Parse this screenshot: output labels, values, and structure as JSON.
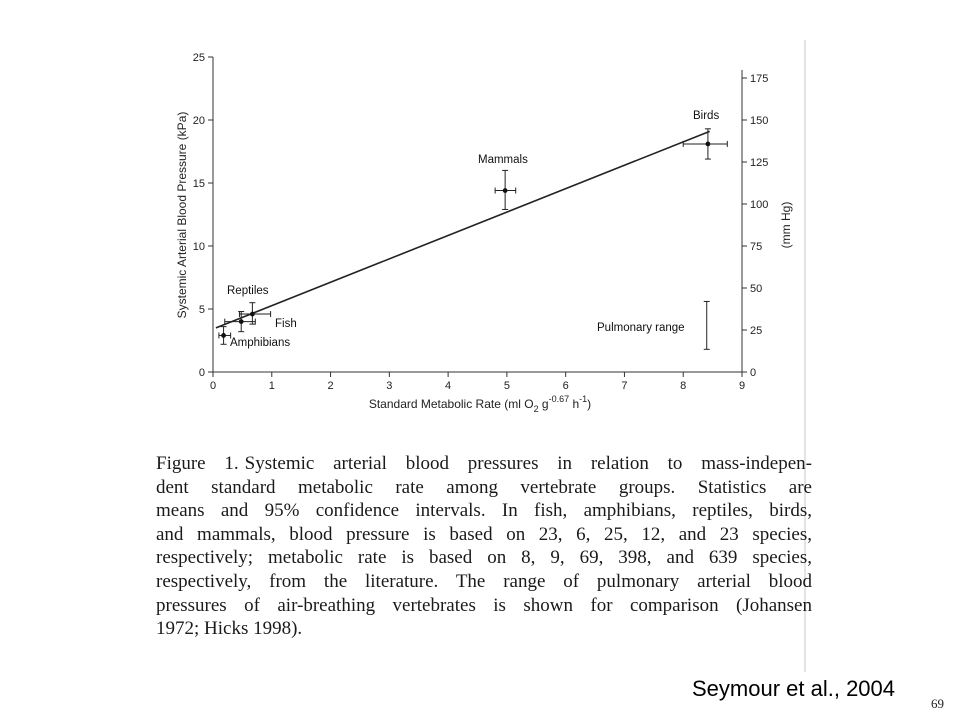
{
  "chart_data": {
    "type": "scatter",
    "x": {
      "label": "Standard Metabolic Rate (ml O",
      "label_sub": "2",
      "label_unit": " g",
      "label_sup": "-0.67",
      "label_tail": " h",
      "label_sup2": "-1",
      "label_close": ")",
      "range": [
        0,
        9
      ],
      "ticks": [
        0,
        1,
        2,
        3,
        4,
        5,
        6,
        7,
        8,
        9
      ]
    },
    "y_left": {
      "label": "Systemic Arterial Blood Pressure  (kPa)",
      "range": [
        0,
        25
      ],
      "ticks": [
        0,
        5,
        10,
        15,
        20,
        25
      ]
    },
    "y_right": {
      "label": "(mm Hg)",
      "range": [
        0,
        187.5
      ],
      "ticks": [
        0,
        25,
        50,
        75,
        100,
        125,
        150,
        175
      ]
    },
    "grid": false,
    "points": [
      {
        "name": "Fish",
        "x": 0.48,
        "y": 4.0,
        "x_err": [
          0.2,
          0.72
        ],
        "y_err": [
          3.2,
          4.8
        ]
      },
      {
        "name": "Amphibians",
        "x": 0.18,
        "y": 2.9,
        "x_err": [
          0.1,
          0.3
        ],
        "y_err": [
          2.2,
          3.6
        ]
      },
      {
        "name": "Reptiles",
        "x": 0.67,
        "y": 4.6,
        "x_err": [
          0.45,
          0.98
        ],
        "y_err": [
          3.8,
          5.5
        ]
      },
      {
        "name": "Mammals",
        "x": 4.97,
        "y": 14.4,
        "x_err": [
          4.8,
          5.15
        ],
        "y_err": [
          12.9,
          16.0
        ]
      },
      {
        "name": "Birds",
        "x": 8.42,
        "y": 18.1,
        "x_err": [
          8.0,
          8.75
        ],
        "y_err": [
          16.9,
          19.3
        ]
      }
    ],
    "regression": {
      "x": [
        0.05,
        8.45
      ],
      "y": [
        3.5,
        19.1
      ]
    },
    "pulmonary_range": {
      "label": "Pulmonary range",
      "x": 8.4,
      "y": [
        1.8,
        5.6
      ]
    }
  },
  "caption": {
    "figure_label": "Figure 1.",
    "lines": [
      "Systemic arterial blood pressures in relation to mass-indepen-",
      "dent standard metabolic rate among vertebrate groups. Statistics are",
      "means and 95% confidence intervals. In fish, amphibians, reptiles, birds,",
      "and mammals, blood pressure is based on 23, 6, 25, 12, and 23 species,",
      "respectively; metabolic rate is based on 8, 9, 69, 398, and 639 species,",
      "respectively, from the literature. The range of pulmonary arterial blood",
      "pressures of air-breathing vertebrates is shown for comparison (Johansen",
      "1972; Hicks 1998)."
    ]
  },
  "credit": "Seymour et al., 2004",
  "slide_number": "69"
}
